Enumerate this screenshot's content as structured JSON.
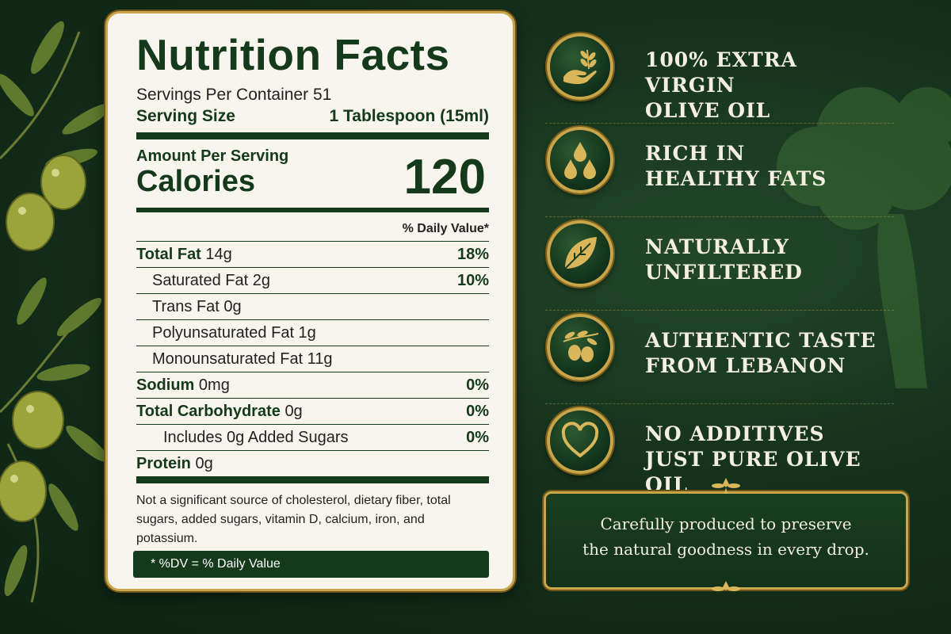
{
  "label": {
    "title": "Nutrition Facts",
    "servings": "Servings Per Container 51",
    "serving_size_label": "Serving Size",
    "serving_size_value": "1 Tablespoon (15ml)",
    "amount_per_serving": "Amount Per Serving",
    "calories_label": "Calories",
    "calories_value": "120",
    "dv_header": "% Daily Value*",
    "rows": [
      {
        "name": "Total Fat",
        "amount": "14g",
        "dv": "18%"
      },
      {
        "name": "Saturated Fat 2g",
        "dv": "10%"
      },
      {
        "name": "Trans Fat 0g",
        "dv": ""
      },
      {
        "name": "Polyunsaturated Fat 1g",
        "dv": ""
      },
      {
        "name": "Monounsaturated Fat 11g",
        "dv": ""
      },
      {
        "name": "Sodium",
        "amount": "0mg",
        "dv": "0%"
      },
      {
        "name": "Total Carbohydrate",
        "amount": "0g",
        "dv": "0%"
      },
      {
        "name": "Includes 0g Added Sugars",
        "dv": "0%"
      },
      {
        "name": "Protein",
        "amount": "0g",
        "dv": ""
      }
    ],
    "footnote": "Not a significant source of cholesterol, dietary fiber, total sugars, added sugars, vitamin D, calcium, iron, and potassium.",
    "dv_footer": "* %DV = % Daily Value"
  },
  "features": [
    {
      "line1": "100% EXTRA VIRGIN",
      "line2": "OLIVE OIL",
      "icon": "hand-olive-branch-icon"
    },
    {
      "line1": "RICH IN",
      "line2": "HEALTHY FATS",
      "icon": "oil-drops-icon"
    },
    {
      "line1": "NATURALLY",
      "line2": "UNFILTERED",
      "icon": "leaf-icon"
    },
    {
      "line1": "AUTHENTIC TASTE",
      "line2": "FROM LEBANON",
      "icon": "olives-icon"
    },
    {
      "line1": "NO ADDITIVES",
      "line2": "JUST PURE OLIVE OIL",
      "icon": "heart-icon"
    }
  ],
  "quote": {
    "line1": "Carefully produced to preserve",
    "line2": "the natural goodness in every drop."
  },
  "colors": {
    "background": "#14301b",
    "gold": "#c9a54a",
    "label_green": "#143a1b",
    "label_bg": "#f7f5ee"
  }
}
